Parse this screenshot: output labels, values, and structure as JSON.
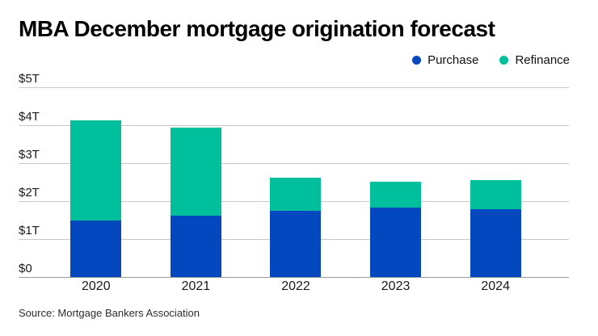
{
  "title": "MBA December mortgage origination forecast",
  "source": "Source: Mortgage Bankers Association",
  "colors": {
    "purchase": "#0448BF",
    "refinance": "#00BF9C",
    "gridline": "#c9c9c9",
    "baseline": "#9b9b9b",
    "title_text": "#000000",
    "axis_text": "#1a1a1a"
  },
  "legend": [
    {
      "label": "Purchase",
      "color": "#0448BF"
    },
    {
      "label": "Refinance",
      "color": "#00BF9C"
    }
  ],
  "chart_data": {
    "type": "bar",
    "stacked": true,
    "title": "MBA December mortgage origination forecast",
    "categories": [
      "2020",
      "2021",
      "2022",
      "2023",
      "2024"
    ],
    "series": [
      {
        "name": "Purchase",
        "color": "#0448BF",
        "values": [
          1.48,
          1.61,
          1.74,
          1.84,
          1.79
        ]
      },
      {
        "name": "Refinance",
        "color": "#00BF9C",
        "values": [
          2.63,
          2.32,
          0.87,
          0.68,
          0.76
        ]
      }
    ],
    "totals": [
      4.11,
      3.93,
      2.61,
      2.52,
      2.55
    ],
    "units": "trillions USD",
    "xlabel": "",
    "ylabel": "",
    "ylim": [
      0,
      5
    ],
    "yticks": [
      0,
      1,
      2,
      3,
      4,
      5
    ],
    "ytick_labels": [
      "$0",
      "$1T",
      "$2T",
      "$3T",
      "$4T",
      "$5T"
    ],
    "grid": true,
    "legend_position": "top-right",
    "source": "Source: Mortgage Bankers Association"
  }
}
